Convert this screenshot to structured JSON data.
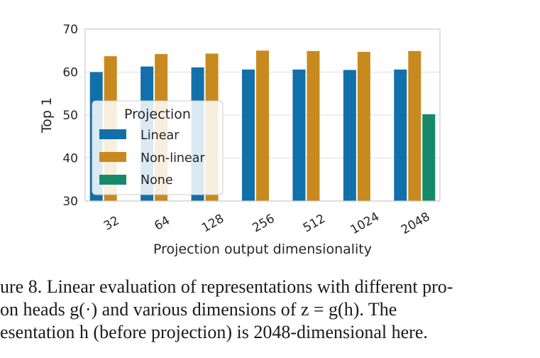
{
  "chart_data": {
    "type": "bar",
    "categories": [
      "32",
      "64",
      "128",
      "256",
      "512",
      "1024",
      "2048"
    ],
    "series": [
      {
        "name": "Linear",
        "values": [
          60.0,
          61.3,
          61.1,
          60.6,
          60.6,
          60.5,
          60.6
        ],
        "color": "#1170aa"
      },
      {
        "name": "Non-linear",
        "values": [
          63.7,
          64.2,
          64.3,
          65.0,
          64.9,
          64.7,
          64.9
        ],
        "color": "#c88a1e"
      },
      {
        "name": "None",
        "values": [
          null,
          null,
          null,
          null,
          null,
          null,
          50.2
        ],
        "color": "#16896b"
      }
    ],
    "xlabel": "Projection output dimensionality",
    "ylabel": "Top 1",
    "ylim": [
      30,
      70
    ],
    "yticks": [
      "30",
      "40",
      "50",
      "60",
      "70"
    ],
    "legend": {
      "title": "Projection",
      "placement": "center-left"
    },
    "grid": true
  },
  "caption": {
    "line1": "ure 8. Linear evaluation of representations with different pro-",
    "line2": "on heads g(·) and various dimensions of z = g(h).  The",
    "line3": "esentation h (before projection) is 2048-dimensional here."
  }
}
